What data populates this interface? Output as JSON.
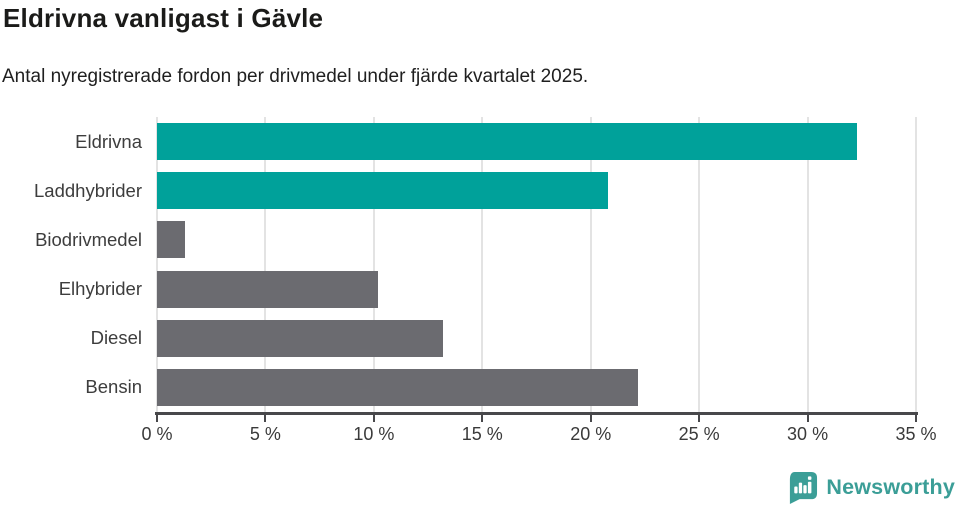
{
  "header": {
    "title": "Eldrivna vanligast i Gävle",
    "subtitle": "Antal nyregistrerade fordon per drivmedel under fjärde kvartalet 2025."
  },
  "chart_data": {
    "type": "bar",
    "orientation": "horizontal",
    "title": "Eldrivna vanligast i Gävle",
    "subtitle": "Antal nyregistrerade fordon per drivmedel under fjärde kvartalet 2025.",
    "categories": [
      "Eldrivna",
      "Laddhybrider",
      "Biodrivmedel",
      "Elhybrider",
      "Diesel",
      "Bensin"
    ],
    "values": [
      32.3,
      20.8,
      1.3,
      10.2,
      13.2,
      22.2
    ],
    "unit": "%",
    "xlabel": "",
    "ylabel": "",
    "xlim": [
      0,
      35
    ],
    "x_ticks": [
      0,
      5,
      10,
      15,
      20,
      25,
      30,
      35
    ],
    "x_tick_labels": [
      "0 %",
      "5 %",
      "10 %",
      "15 %",
      "20 %",
      "25 %",
      "30 %",
      "35 %"
    ],
    "grid": "vertical-gridlines-on",
    "legend": "none",
    "bar_colors": [
      "#00a19a",
      "#00a19a",
      "#6b6b70",
      "#6b6b70",
      "#6b6b70",
      "#6b6b70"
    ],
    "accent_color": "#00a19a",
    "default_bar_color": "#6b6b70",
    "grid_color": "#e3e3e3",
    "axis_color": "#48484b"
  },
  "footer": {
    "brand": "Newsworthy",
    "brand_color": "#3b9e97",
    "logo_icon": "newsworthy-speech-bubble-bar-chart-icon"
  }
}
